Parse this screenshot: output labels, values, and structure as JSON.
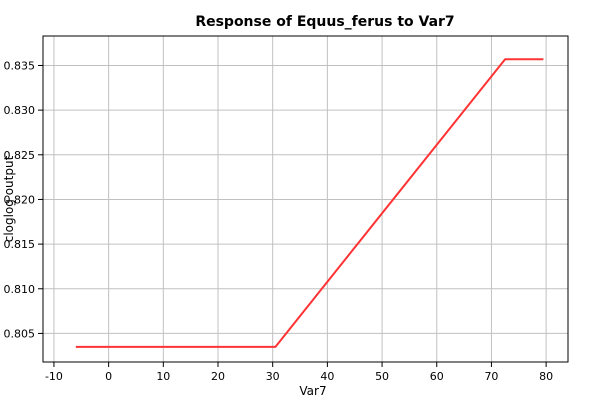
{
  "chart_data": {
    "type": "line",
    "title": "Response of Equus_ferus to Var7",
    "xlabel": "Var7",
    "ylabel": "cloglog output",
    "xlim": [
      -12,
      84
    ],
    "ylim": [
      0.8018,
      0.8383
    ],
    "xticks": [
      "-10",
      "0",
      "10",
      "20",
      "30",
      "40",
      "50",
      "60",
      "70",
      "80"
    ],
    "yticks": [
      "0.805",
      "0.810",
      "0.815",
      "0.820",
      "0.825",
      "0.830",
      "0.835"
    ],
    "grid": true,
    "series": [
      {
        "color": "#ff3333",
        "x": [
          -6,
          30.5,
          72.5,
          79.5
        ],
        "y": [
          0.8035,
          0.8035,
          0.8357,
          0.8357
        ]
      }
    ]
  }
}
